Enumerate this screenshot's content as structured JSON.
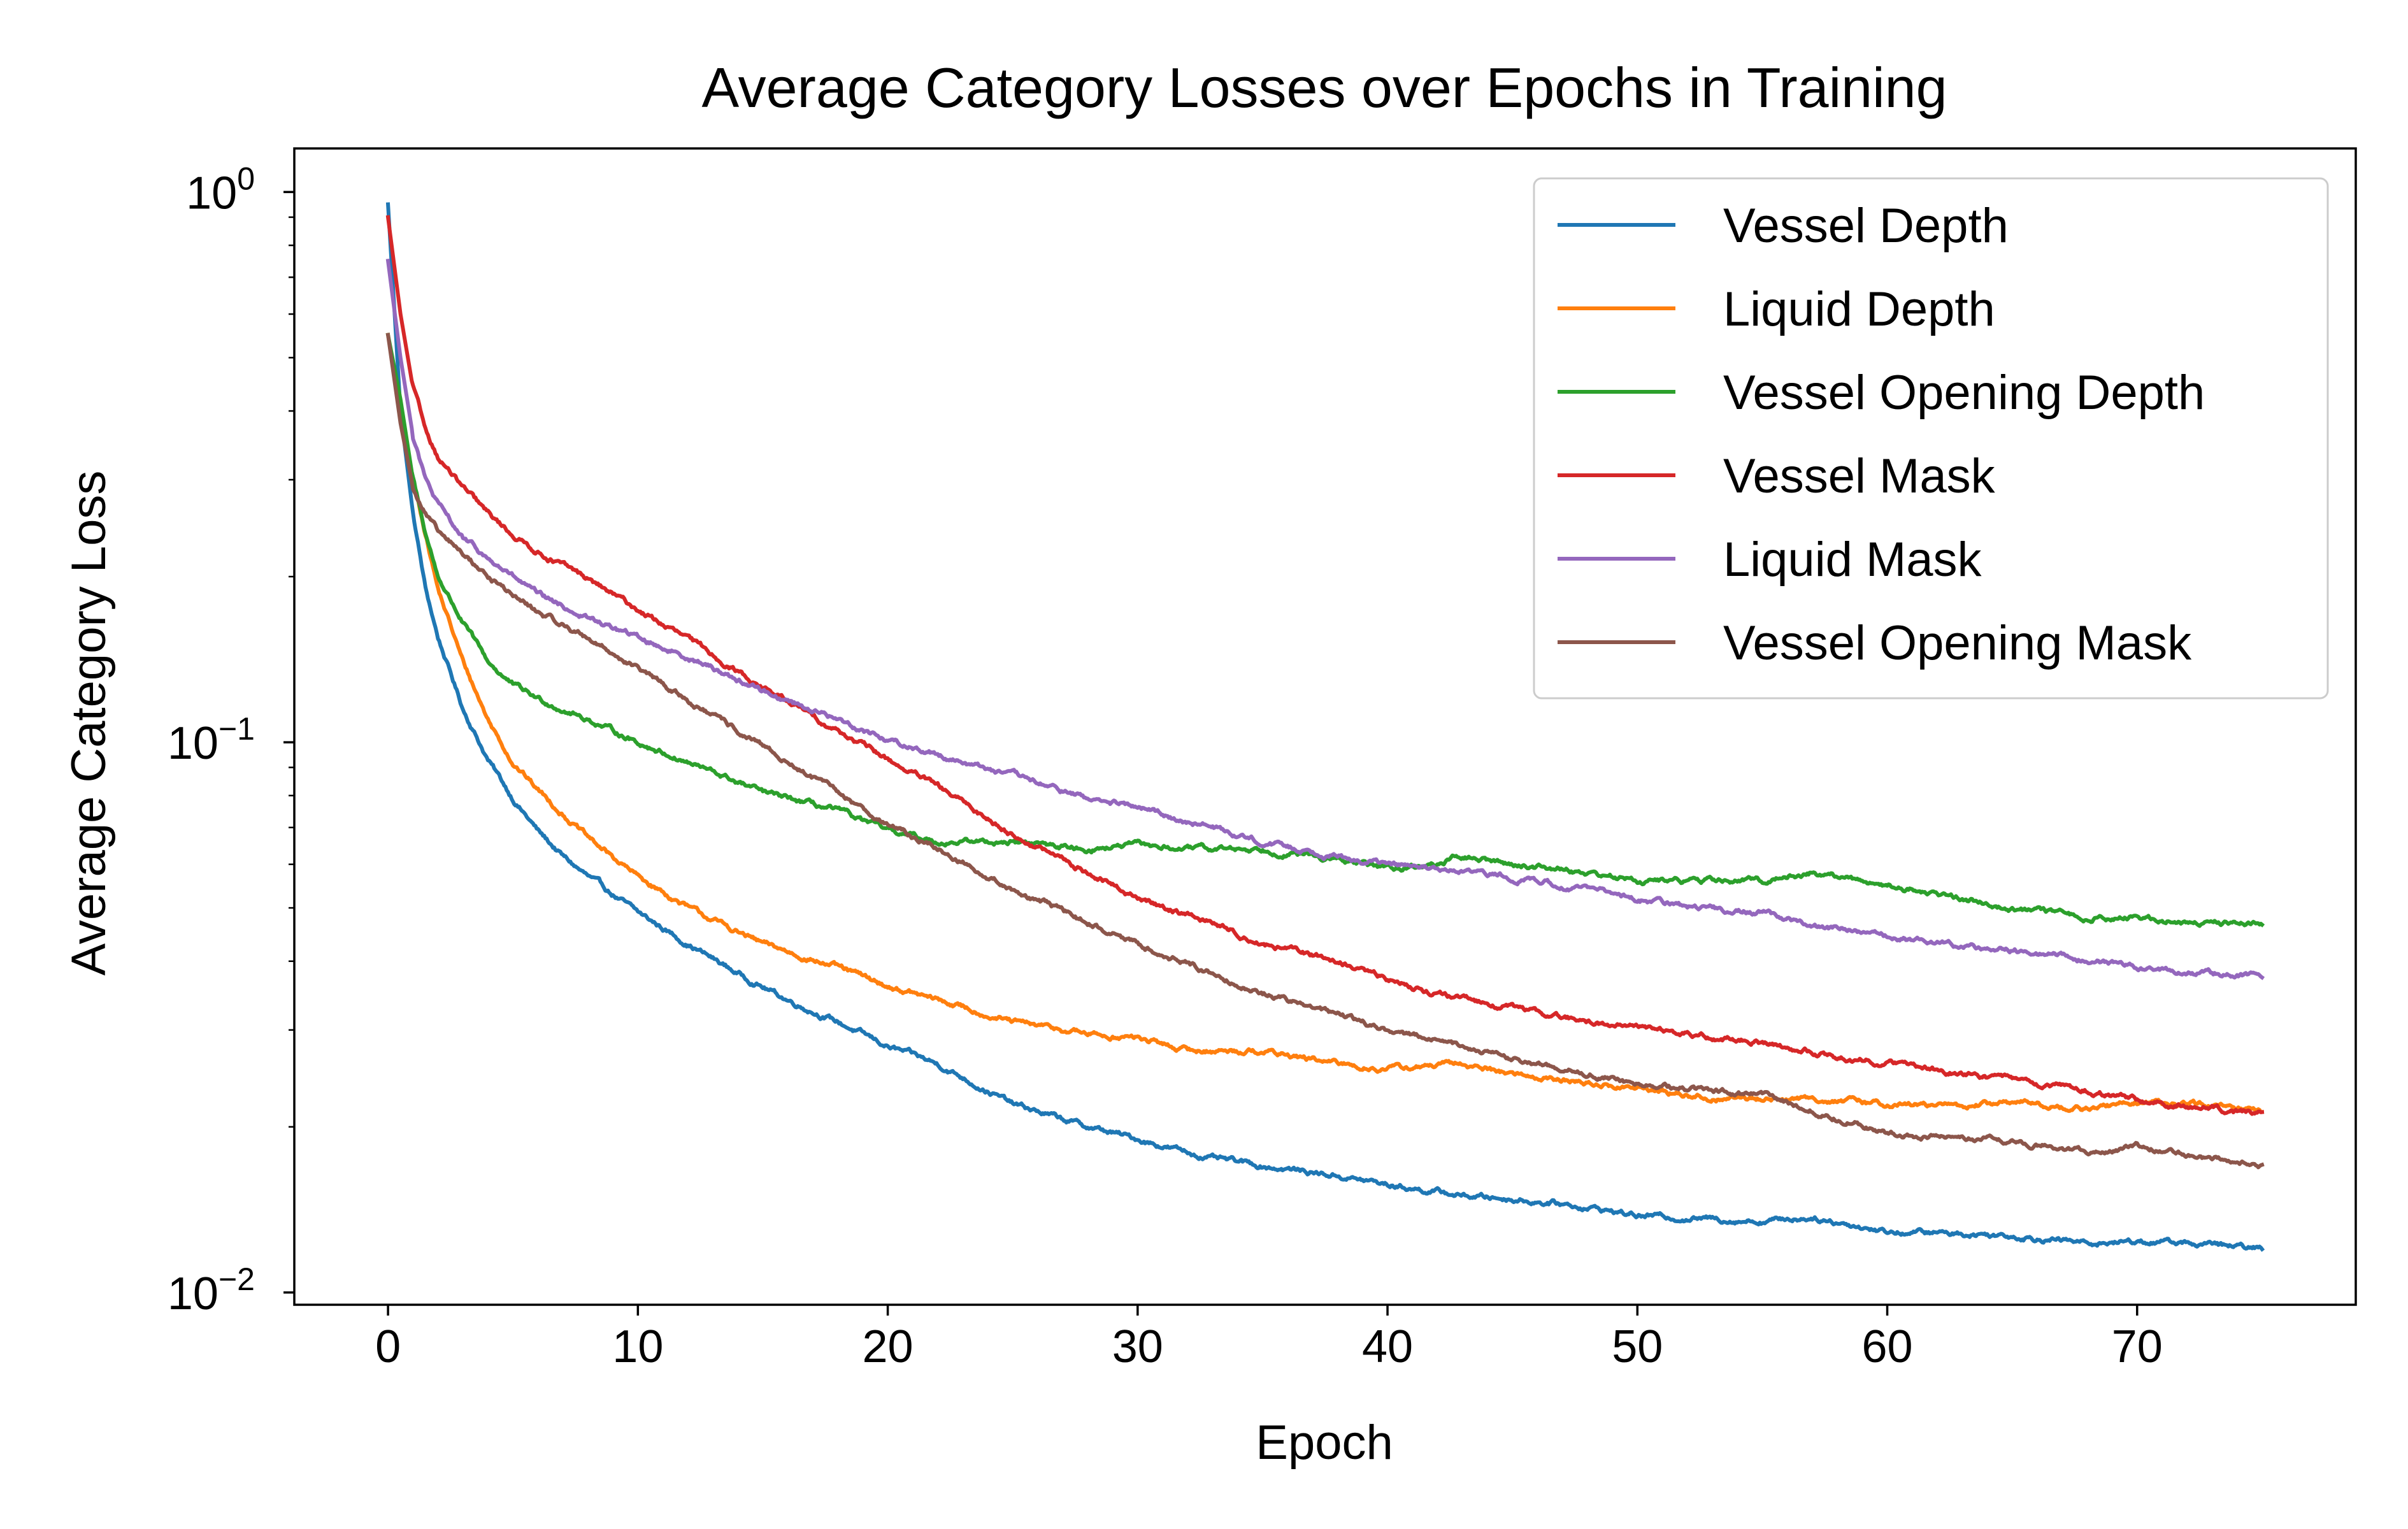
{
  "chart_data": {
    "type": "line",
    "title": "Average Category Losses over Epochs in Training",
    "xlabel": "Epoch",
    "ylabel": "Average Category Loss",
    "yscale": "log",
    "xlim": [
      -3.75,
      78.75
    ],
    "ylim": [
      0.0095,
      1.2
    ],
    "x_ticks": [
      0,
      10,
      20,
      30,
      40,
      50,
      60,
      70
    ],
    "y_ticks": [
      {
        "value": 0.01,
        "base": "10",
        "exp": "−2"
      },
      {
        "value": 0.1,
        "base": "10",
        "exp": "−1"
      },
      {
        "value": 1,
        "base": "10",
        "exp": "0"
      }
    ],
    "legend_position": "top-right",
    "grid": false,
    "series": [
      {
        "name": "Vessel Depth",
        "color": "#1f77b4",
        "x": [
          0,
          0.5,
          1,
          1.5,
          2,
          3,
          4,
          5,
          6,
          7,
          8,
          10,
          12,
          14,
          16,
          18,
          20,
          22,
          25,
          28,
          30,
          33,
          35,
          38,
          40,
          43,
          45,
          48,
          50,
          53,
          55,
          57,
          60,
          63,
          65,
          68,
          70,
          72,
          75
        ],
        "y": [
          0.95,
          0.4,
          0.26,
          0.19,
          0.155,
          0.115,
          0.093,
          0.079,
          0.069,
          0.062,
          0.057,
          0.049,
          0.043,
          0.038,
          0.034,
          0.031,
          0.028,
          0.026,
          0.022,
          0.02,
          0.019,
          0.0175,
          0.017,
          0.0163,
          0.0157,
          0.015,
          0.0148,
          0.0143,
          0.0138,
          0.0136,
          0.0135,
          0.0137,
          0.0129,
          0.0128,
          0.0127,
          0.0123,
          0.0124,
          0.0123,
          0.012
        ]
      },
      {
        "name": "Liquid Depth",
        "color": "#ff7f0e",
        "x": [
          0,
          0.5,
          1,
          1.5,
          2,
          3,
          4,
          5,
          6,
          8,
          10,
          12,
          15,
          18,
          20,
          23,
          25,
          28,
          30,
          32,
          35,
          38,
          40,
          43,
          45,
          48,
          50,
          53,
          55,
          57,
          60,
          63,
          65,
          68,
          70,
          73,
          75
        ],
        "y": [
          0.55,
          0.4,
          0.3,
          0.24,
          0.19,
          0.14,
          0.11,
          0.092,
          0.082,
          0.067,
          0.057,
          0.05,
          0.043,
          0.039,
          0.036,
          0.033,
          0.031,
          0.0295,
          0.029,
          0.0275,
          0.0275,
          0.026,
          0.0255,
          0.026,
          0.025,
          0.024,
          0.0235,
          0.0225,
          0.0225,
          0.0225,
          0.022,
          0.0218,
          0.0222,
          0.0215,
          0.0222,
          0.0218,
          0.0212
        ]
      },
      {
        "name": "Vessel Opening Depth",
        "color": "#2ca02c",
        "x": [
          0,
          0.5,
          1,
          1.5,
          2,
          3,
          4,
          5,
          6,
          8,
          10,
          12,
          15,
          18,
          20,
          22,
          25,
          28,
          30,
          32,
          35,
          38,
          40,
          42,
          43,
          45,
          47,
          50,
          52,
          55,
          57,
          60,
          63,
          65,
          68,
          70,
          72,
          75
        ],
        "y": [
          0.55,
          0.42,
          0.3,
          0.24,
          0.2,
          0.165,
          0.14,
          0.127,
          0.12,
          0.11,
          0.1,
          0.092,
          0.081,
          0.075,
          0.069,
          0.066,
          0.066,
          0.064,
          0.065,
          0.064,
          0.064,
          0.061,
          0.059,
          0.06,
          0.062,
          0.06,
          0.059,
          0.056,
          0.056,
          0.056,
          0.058,
          0.055,
          0.052,
          0.05,
          0.048,
          0.048,
          0.047,
          0.047
        ]
      },
      {
        "name": "Vessel Mask",
        "color": "#d62728",
        "x": [
          0,
          0.5,
          1,
          1.5,
          2,
          3,
          4,
          5,
          6,
          8,
          10,
          12,
          15,
          18,
          20,
          22,
          25,
          28,
          30,
          33,
          35,
          38,
          40,
          43,
          45,
          48,
          50,
          53,
          55,
          58,
          60,
          63,
          65,
          68,
          70,
          72,
          75
        ],
        "y": [
          0.9,
          0.6,
          0.44,
          0.37,
          0.33,
          0.29,
          0.26,
          0.238,
          0.222,
          0.198,
          0.174,
          0.154,
          0.126,
          0.105,
          0.093,
          0.083,
          0.068,
          0.058,
          0.052,
          0.047,
          0.043,
          0.04,
          0.037,
          0.034,
          0.033,
          0.031,
          0.0305,
          0.029,
          0.0285,
          0.0268,
          0.0262,
          0.025,
          0.0243,
          0.0233,
          0.0223,
          0.0218,
          0.0211
        ]
      },
      {
        "name": "Liquid Mask",
        "color": "#9467bd",
        "x": [
          0,
          0.5,
          1,
          1.5,
          2,
          3,
          4,
          5,
          6,
          8,
          10,
          12,
          15,
          18,
          20,
          22,
          25,
          28,
          30,
          33,
          35,
          38,
          40,
          43,
          45,
          48,
          50,
          52,
          55,
          57,
          60,
          63,
          65,
          68,
          70,
          72,
          75
        ],
        "y": [
          0.75,
          0.5,
          0.36,
          0.3,
          0.27,
          0.235,
          0.215,
          0.2,
          0.185,
          0.168,
          0.155,
          0.143,
          0.124,
          0.11,
          0.101,
          0.095,
          0.087,
          0.079,
          0.076,
          0.07,
          0.066,
          0.062,
          0.06,
          0.058,
          0.057,
          0.054,
          0.052,
          0.0502,
          0.049,
          0.0465,
          0.0445,
          0.0425,
          0.042,
          0.0402,
          0.039,
          0.038,
          0.0377
        ]
      },
      {
        "name": "Vessel Opening Mask",
        "color": "#8c564b",
        "x": [
          0,
          0.5,
          1,
          1.5,
          2,
          3,
          4,
          5,
          6,
          8,
          10,
          12,
          15,
          18,
          20,
          22,
          25,
          28,
          30,
          33,
          35,
          38,
          40,
          43,
          45,
          48,
          50,
          52,
          55,
          57,
          60,
          63,
          65,
          68,
          70,
          72,
          75
        ],
        "y": [
          0.55,
          0.38,
          0.29,
          0.26,
          0.24,
          0.22,
          0.2,
          0.185,
          0.172,
          0.155,
          0.136,
          0.119,
          0.098,
          0.081,
          0.071,
          0.064,
          0.054,
          0.047,
          0.043,
          0.038,
          0.035,
          0.032,
          0.03,
          0.028,
          0.0265,
          0.025,
          0.024,
          0.0235,
          0.0228,
          0.0215,
          0.0195,
          0.019,
          0.0188,
          0.018,
          0.0185,
          0.0178,
          0.017
        ]
      }
    ]
  }
}
